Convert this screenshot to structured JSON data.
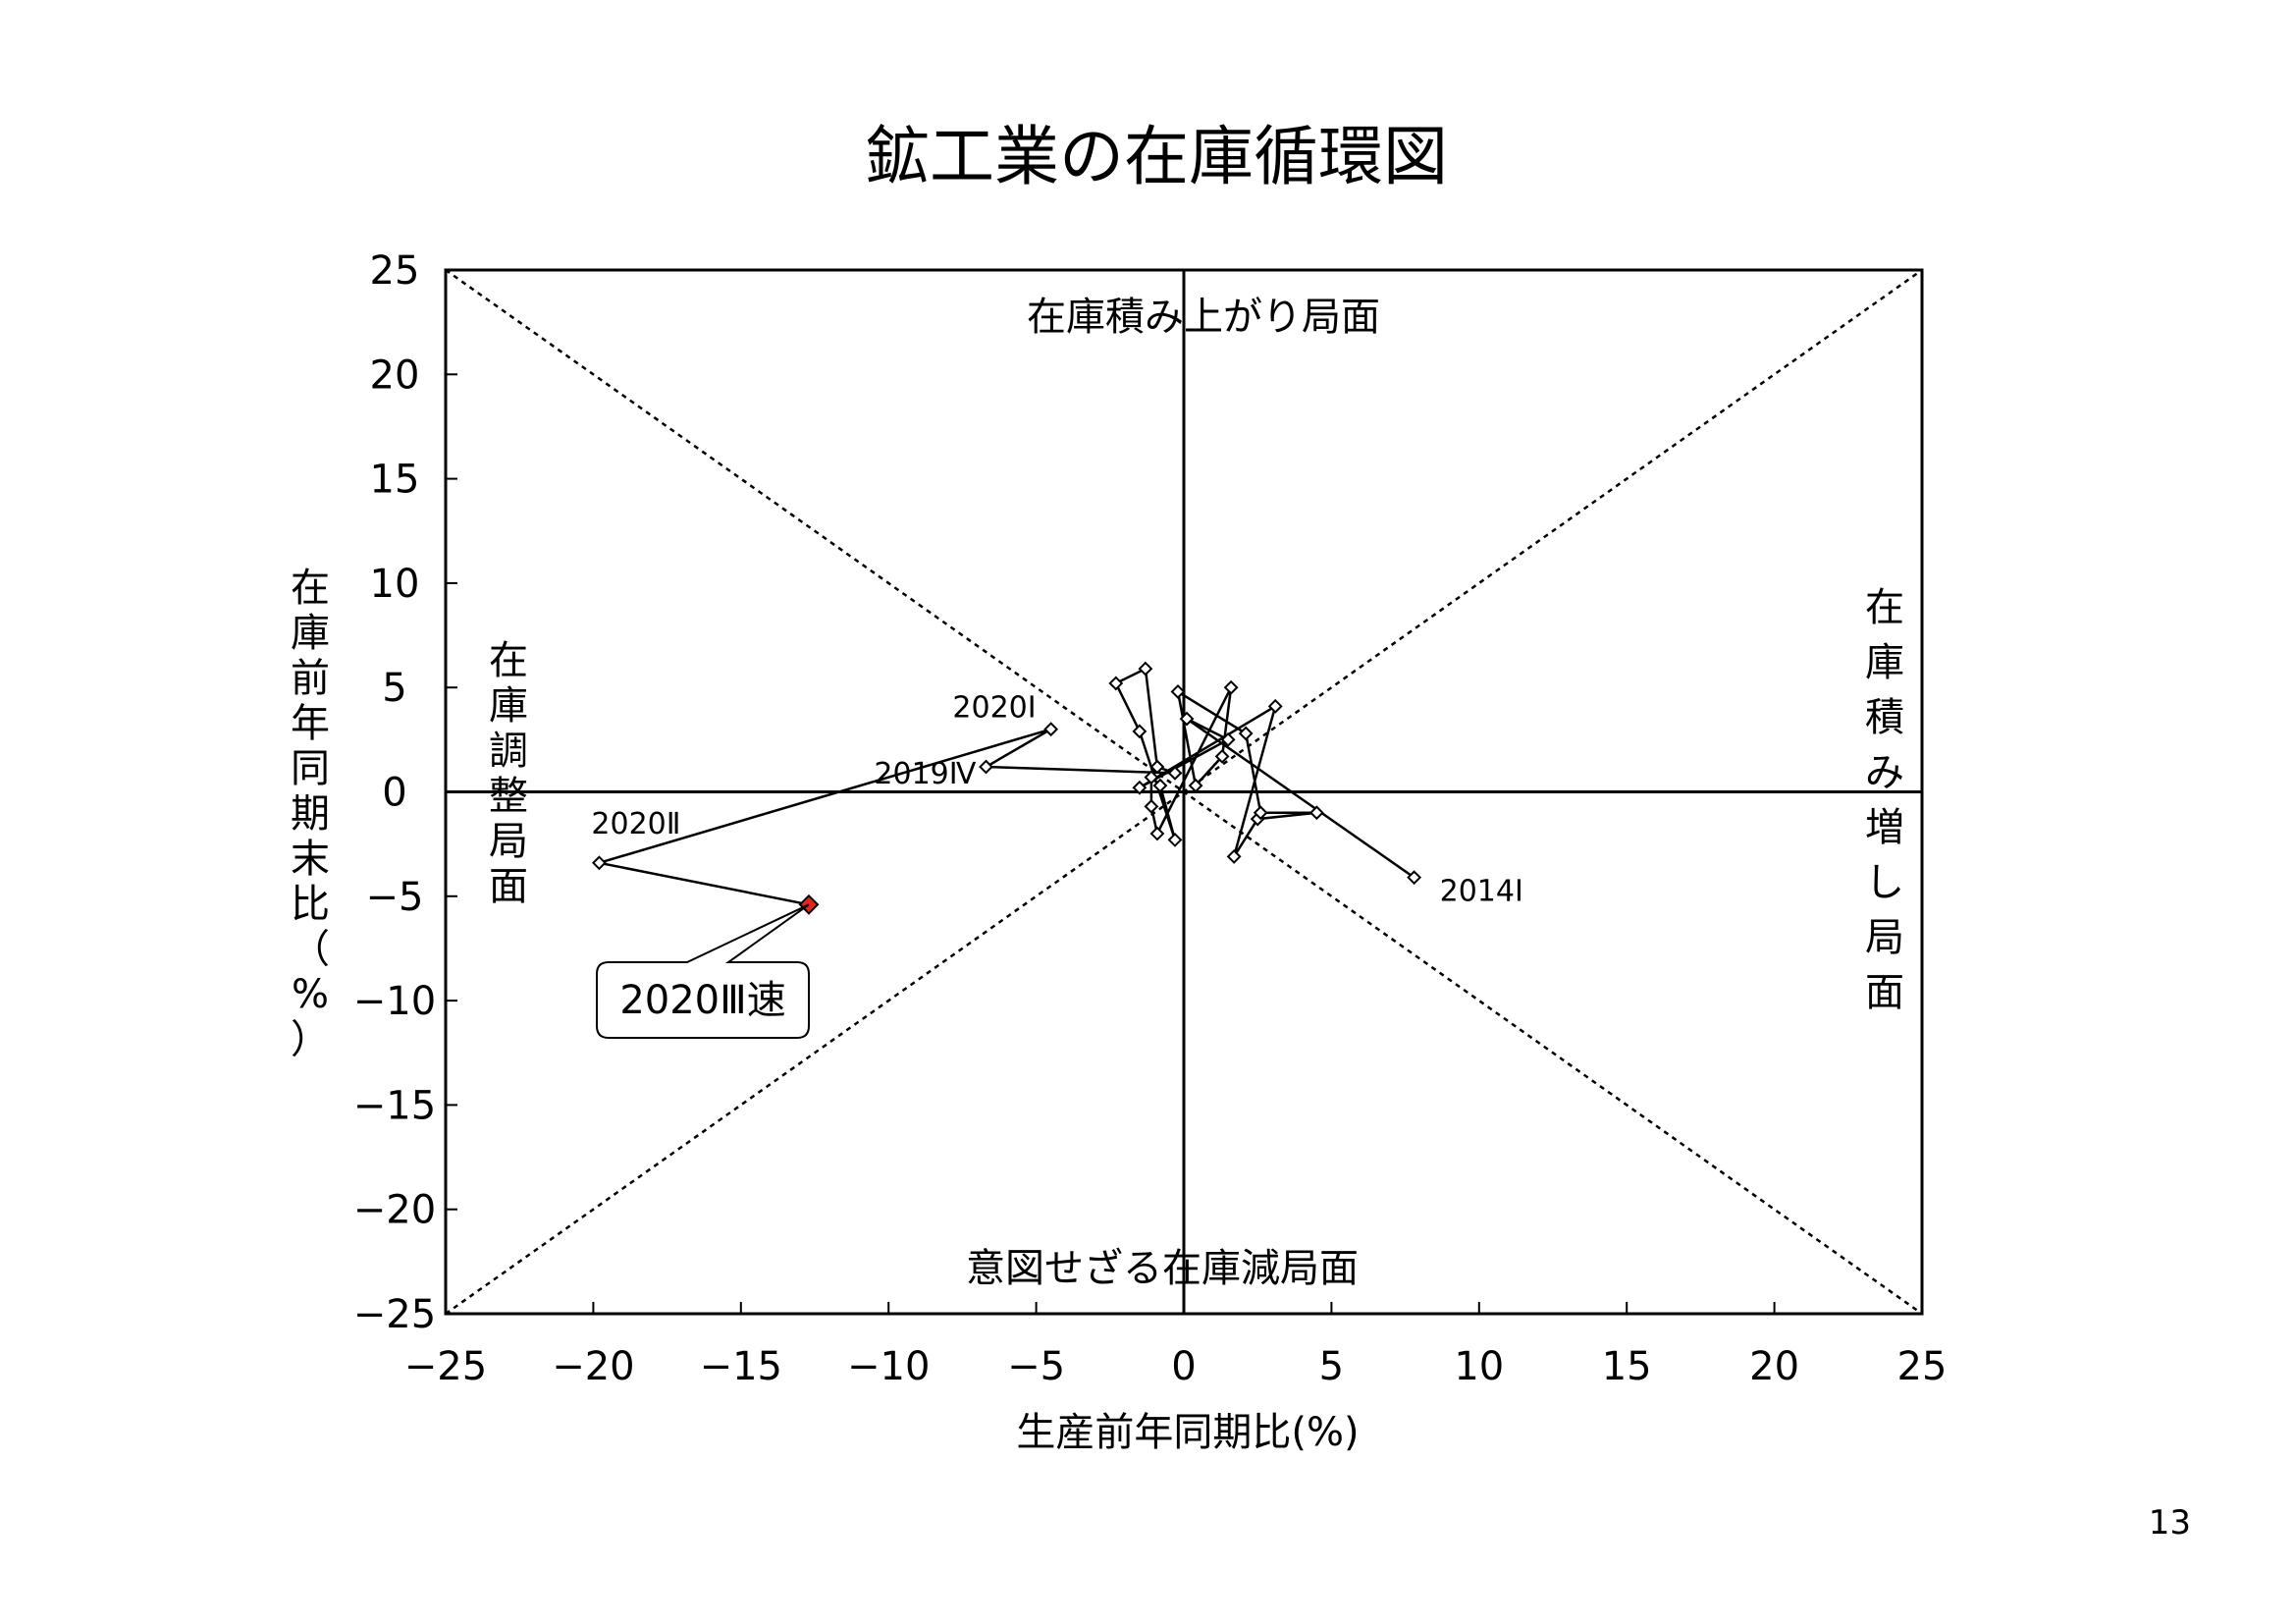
{
  "page_number": "13",
  "chart_data": {
    "type": "scatter",
    "title": "鉱工業の在庫循環図",
    "xlabel": "生産前年同期比(%)",
    "ylabel_chars": [
      "在",
      "庫",
      "前",
      "年",
      "同",
      "期",
      "末",
      "比",
      "（",
      "%",
      "）"
    ],
    "xlim": [
      -25,
      25
    ],
    "ylim": [
      -25,
      25
    ],
    "ticks": [
      -25,
      -20,
      -15,
      -10,
      -5,
      0,
      5,
      10,
      15,
      20,
      25
    ],
    "tick_labels": [
      "−25",
      "−20",
      "−15",
      "−10",
      "−5",
      "0",
      "5",
      "10",
      "15",
      "20",
      "25"
    ],
    "diagonal_lines": "dotted y=x and y=-x",
    "regions": {
      "top": "在庫積み上がり局面",
      "bottom": "意図せざる在庫減局面",
      "left_chars": [
        "在",
        "庫",
        "調",
        "整",
        "局",
        "面"
      ],
      "right_chars": [
        "在",
        "庫",
        "積",
        "み",
        "増",
        "し",
        "局",
        "面"
      ]
    },
    "series": [
      {
        "points": [
          {
            "x": 7.8,
            "y": -4.1
          },
          {
            "x": 0.1,
            "y": 3.5
          },
          {
            "x": 1.5,
            "y": 2.5
          },
          {
            "x": -1.5,
            "y": 0.2
          },
          {
            "x": 3.1,
            "y": 4.1
          },
          {
            "x": 1.7,
            "y": -3.1
          },
          {
            "x": 2.5,
            "y": -1.3
          },
          {
            "x": 4.5,
            "y": -1.0
          },
          {
            "x": 2.6,
            "y": -1.0
          },
          {
            "x": 2.1,
            "y": 2.8
          },
          {
            "x": -0.2,
            "y": 4.8
          },
          {
            "x": 0.4,
            "y": 0.3
          },
          {
            "x": 1.3,
            "y": 1.7
          },
          {
            "x": 1.6,
            "y": 5.0
          },
          {
            "x": -0.9,
            "y": -2.0
          },
          {
            "x": -1.1,
            "y": -0.7
          },
          {
            "x": -1.1,
            "y": 0.7
          },
          {
            "x": -0.8,
            "y": 0.3
          },
          {
            "x": -0.3,
            "y": -2.3
          },
          {
            "x": -1.5,
            "y": 2.9
          },
          {
            "x": -2.3,
            "y": 5.2
          },
          {
            "x": -1.3,
            "y": 5.9
          },
          {
            "x": -0.9,
            "y": 1.2
          },
          {
            "x": -0.3,
            "y": 0.9
          },
          {
            "x": -6.7,
            "y": 1.2
          },
          {
            "x": -4.5,
            "y": 3.0
          },
          {
            "x": -19.8,
            "y": -3.4
          },
          {
            "x": -12.7,
            "y": -5.4
          }
        ]
      }
    ],
    "point_labels": [
      {
        "text": "2014Ⅰ",
        "x": 7.8,
        "y": -4.1
      },
      {
        "text": "2020Ⅰ",
        "x": -4.5,
        "y": 3.0
      },
      {
        "text": "2019Ⅳ",
        "x": -6.7,
        "y": 1.2
      },
      {
        "text": "2020Ⅱ",
        "x": -19.8,
        "y": -3.4
      }
    ],
    "callout": {
      "text": "2020Ⅲ速",
      "x": -12.7,
      "y": -5.4
    },
    "highlight_color": "#e8231d",
    "marker_color": "#000000"
  }
}
